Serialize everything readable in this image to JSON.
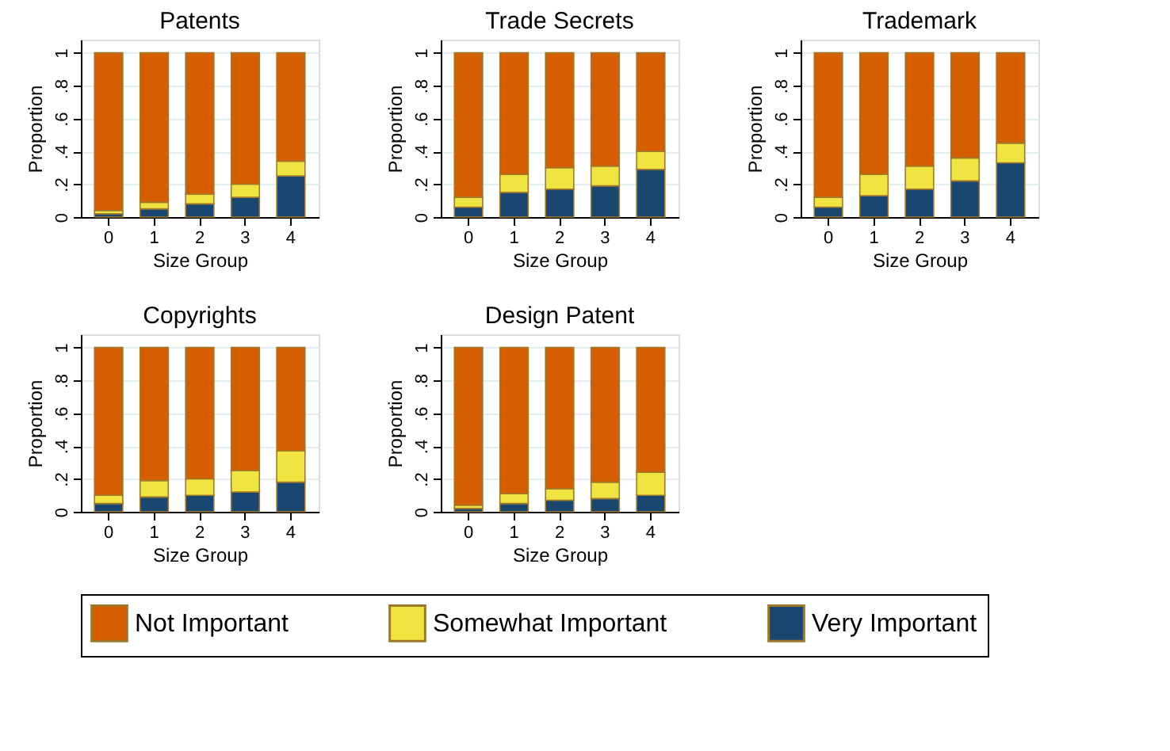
{
  "chart_data": [
    {
      "type": "bar",
      "stacked": true,
      "title": "Patents",
      "xlabel": "Size Group",
      "ylabel": "Proportion",
      "categories": [
        "0",
        "1",
        "2",
        "3",
        "4"
      ],
      "ylim": [
        0,
        1.08
      ],
      "yticks": [
        0,
        {
          "value": 0.2,
          "label": ".2"
        },
        {
          "value": 0.4,
          "label": ".4"
        },
        {
          "value": 0.6,
          "label": ".6"
        },
        {
          "value": 0.8,
          "label": ".8"
        },
        1
      ],
      "grid": "y",
      "series": [
        {
          "color": "#1a476f",
          "values": [
            0.02,
            0.05,
            0.08,
            0.12,
            0.25
          ]
        },
        {
          "color": "#f0e442",
          "values": [
            0.02,
            0.04,
            0.06,
            0.08,
            0.09
          ]
        },
        {
          "color": "#d45e00",
          "values": [
            0.96,
            0.91,
            0.86,
            0.8,
            0.66
          ]
        }
      ]
    },
    {
      "type": "bar",
      "stacked": true,
      "title": "Trade Secrets",
      "xlabel": "Size Group",
      "ylabel": "Proportion",
      "categories": [
        "0",
        "1",
        "2",
        "3",
        "4"
      ],
      "ylim": [
        0,
        1.08
      ],
      "yticks": [
        0,
        {
          "value": 0.2,
          "label": ".2"
        },
        {
          "value": 0.4,
          "label": ".4"
        },
        {
          "value": 0.6,
          "label": ".6"
        },
        {
          "value": 0.8,
          "label": ".8"
        },
        1
      ],
      "grid": "y",
      "series": [
        {
          "color": "#1a476f",
          "values": [
            0.06,
            0.15,
            0.17,
            0.19,
            0.29
          ]
        },
        {
          "color": "#f0e442",
          "values": [
            0.06,
            0.11,
            0.13,
            0.12,
            0.11
          ]
        },
        {
          "color": "#d45e00",
          "values": [
            0.88,
            0.74,
            0.7,
            0.69,
            0.6
          ]
        }
      ]
    },
    {
      "type": "bar",
      "stacked": true,
      "title": "Trademark",
      "xlabel": "Size Group",
      "ylabel": "Proportion",
      "categories": [
        "0",
        "1",
        "2",
        "3",
        "4"
      ],
      "ylim": [
        0,
        1.08
      ],
      "yticks": [
        0,
        {
          "value": 0.2,
          "label": ".2"
        },
        {
          "value": 0.4,
          "label": ".4"
        },
        {
          "value": 0.6,
          "label": ".6"
        },
        {
          "value": 0.8,
          "label": ".8"
        },
        1
      ],
      "grid": "y",
      "series": [
        {
          "color": "#1a476f",
          "values": [
            0.06,
            0.13,
            0.17,
            0.22,
            0.33
          ]
        },
        {
          "color": "#f0e442",
          "values": [
            0.06,
            0.13,
            0.14,
            0.14,
            0.12
          ]
        },
        {
          "color": "#d45e00",
          "values": [
            0.88,
            0.74,
            0.69,
            0.64,
            0.55
          ]
        }
      ]
    },
    {
      "type": "bar",
      "stacked": true,
      "title": "Copyrights",
      "xlabel": "Size Group",
      "ylabel": "Proportion",
      "categories": [
        "0",
        "1",
        "2",
        "3",
        "4"
      ],
      "ylim": [
        0,
        1.08
      ],
      "yticks": [
        0,
        {
          "value": 0.2,
          "label": ".2"
        },
        {
          "value": 0.4,
          "label": ".4"
        },
        {
          "value": 0.6,
          "label": ".6"
        },
        {
          "value": 0.8,
          "label": ".8"
        },
        1
      ],
      "grid": "y",
      "series": [
        {
          "color": "#1a476f",
          "values": [
            0.05,
            0.09,
            0.1,
            0.12,
            0.18
          ]
        },
        {
          "color": "#f0e442",
          "values": [
            0.05,
            0.1,
            0.1,
            0.13,
            0.19
          ]
        },
        {
          "color": "#d45e00",
          "values": [
            0.9,
            0.81,
            0.8,
            0.75,
            0.63
          ]
        }
      ]
    },
    {
      "type": "bar",
      "stacked": true,
      "title": "Design Patent",
      "xlabel": "Size Group",
      "ylabel": "Proportion",
      "categories": [
        "0",
        "1",
        "2",
        "3",
        "4"
      ],
      "ylim": [
        0,
        1.08
      ],
      "yticks": [
        0,
        {
          "value": 0.2,
          "label": ".2"
        },
        {
          "value": 0.4,
          "label": ".4"
        },
        {
          "value": 0.6,
          "label": ".6"
        },
        {
          "value": 0.8,
          "label": ".8"
        },
        1
      ],
      "grid": "y",
      "legend": "bottom",
      "series": [
        {
          "name": "Very Important",
          "color": "#1a476f",
          "values": [
            0.02,
            0.05,
            0.07,
            0.08,
            0.1
          ]
        },
        {
          "name": "Somewhat Important",
          "color": "#f0e442",
          "values": [
            0.02,
            0.06,
            0.07,
            0.1,
            0.14
          ]
        },
        {
          "name": "Not Important",
          "color": "#d45e00",
          "values": [
            0.96,
            0.89,
            0.86,
            0.82,
            0.76
          ]
        }
      ]
    }
  ]
}
